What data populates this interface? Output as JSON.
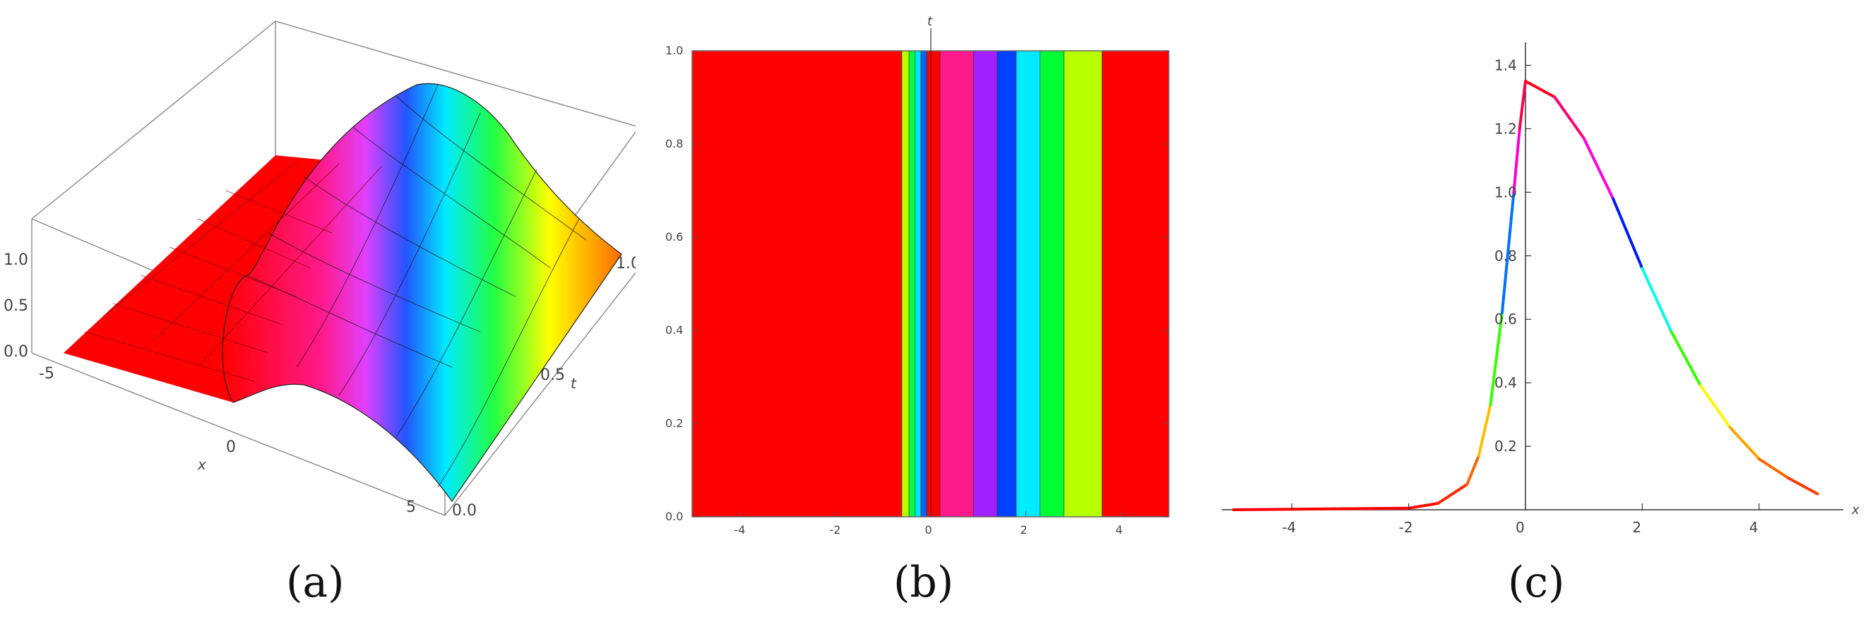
{
  "captions": [
    "(a)",
    "(b)",
    "(c)"
  ],
  "chart_data": [
    {
      "type": "surface",
      "xlabel": "x",
      "ylabel": "t",
      "zlabel": "",
      "xlim": [
        -5,
        5
      ],
      "ylim": [
        0,
        1
      ],
      "zlim": [
        0,
        1.35
      ],
      "x_ticks": [
        "-5",
        "0",
        "5"
      ],
      "t_ticks": [
        "0.0",
        "0.5",
        "1.0"
      ],
      "z_ticks": [
        "0.0",
        "0.5",
        "1.0"
      ],
      "profile": {
        "x": [
          -5,
          -2,
          -1.5,
          -1,
          -0.5,
          0,
          0.5,
          1,
          1.5,
          2,
          3,
          4,
          5
        ],
        "z": [
          0,
          0.01,
          0.04,
          0.15,
          0.7,
          1.35,
          1.25,
          1.05,
          0.85,
          0.65,
          0.38,
          0.2,
          0.1
        ]
      },
      "grid": true
    },
    {
      "type": "heatmap",
      "title": "",
      "xlabel": "",
      "ylabel": "t",
      "xlim": [
        -5,
        5
      ],
      "ylim": [
        0,
        1
      ],
      "x_ticks": [
        "-4",
        "-2",
        "0",
        "2",
        "4"
      ],
      "y_ticks": [
        "0.0",
        "0.2",
        "0.4",
        "0.6",
        "0.8",
        "1.0"
      ],
      "bands": [
        {
          "x0": -5,
          "x1": -0.6,
          "color": "#ff0000"
        },
        {
          "x0": -0.6,
          "x1": -0.45,
          "color": "#b8ff00"
        },
        {
          "x0": -0.45,
          "x1": -0.32,
          "color": "#00ff44"
        },
        {
          "x0": -0.32,
          "x1": -0.2,
          "color": "#00e5ff"
        },
        {
          "x0": -0.2,
          "x1": -0.08,
          "color": "#0066ff"
        },
        {
          "x0": -0.08,
          "x1": 0.2,
          "color": "#ff0000"
        },
        {
          "x0": 0.2,
          "x1": 0.9,
          "color": "#ff1a8c"
        },
        {
          "x0": 0.9,
          "x1": 1.4,
          "color": "#a020ff"
        },
        {
          "x0": 1.4,
          "x1": 1.8,
          "color": "#0040ff"
        },
        {
          "x0": 1.8,
          "x1": 2.3,
          "color": "#00eaff"
        },
        {
          "x0": 2.3,
          "x1": 2.8,
          "color": "#00ff33"
        },
        {
          "x0": 2.8,
          "x1": 3.6,
          "color": "#b8ff00"
        },
        {
          "x0": 3.6,
          "x1": 5,
          "color": "#ff0000"
        }
      ]
    },
    {
      "type": "line",
      "xlabel": "x",
      "ylabel": "",
      "xlim": [
        -5.2,
        5.2
      ],
      "ylim": [
        0,
        1.45
      ],
      "x_ticks": [
        "-4",
        "-2",
        "0",
        "2",
        "4"
      ],
      "y_ticks": [
        "0.2",
        "0.4",
        "0.6",
        "0.8",
        "1.0",
        "1.2",
        "1.4"
      ],
      "x": [
        -5,
        -2,
        -1.5,
        -1,
        -0.8,
        -0.6,
        -0.4,
        -0.2,
        -0.1,
        0,
        0.5,
        1,
        1.5,
        2,
        2.5,
        3,
        3.5,
        4,
        4.5,
        5
      ],
      "y": [
        0,
        0.005,
        0.02,
        0.08,
        0.17,
        0.33,
        0.62,
        1.0,
        1.2,
        1.35,
        1.3,
        1.17,
        0.98,
        0.76,
        0.56,
        0.39,
        0.26,
        0.16,
        0.1,
        0.05
      ]
    }
  ]
}
